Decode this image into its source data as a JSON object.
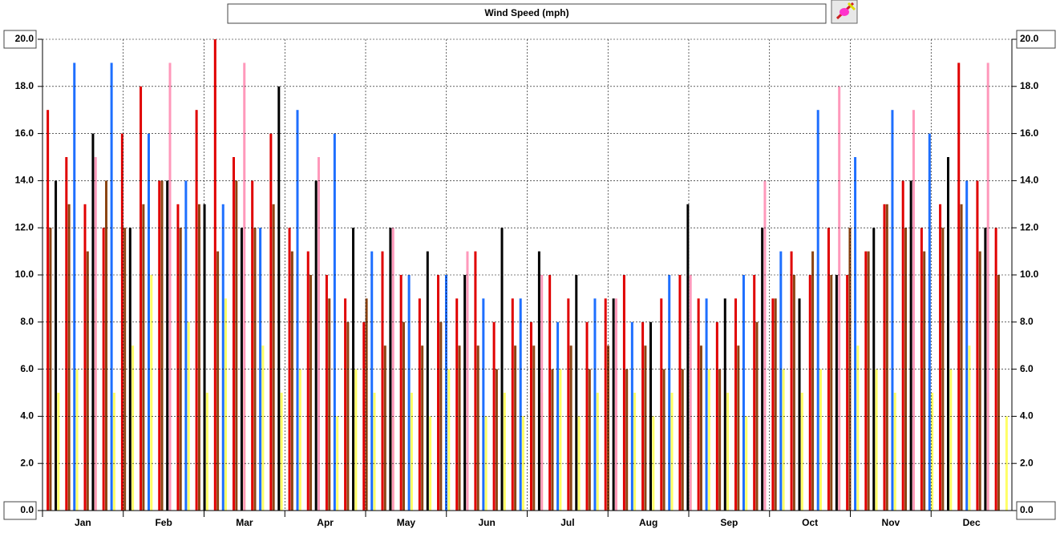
{
  "chart_data": {
    "type": "bar",
    "title": "Wind Speed (mph)",
    "categories": [
      "Jan",
      "Feb",
      "Mar",
      "Apr",
      "May",
      "Jun",
      "Jul",
      "Aug",
      "Sep",
      "Oct",
      "Nov",
      "Dec"
    ],
    "xlim": [
      0,
      365
    ],
    "ylim": [
      0,
      20
    ],
    "yticks": [
      {
        "value": 0,
        "label": "0.0"
      },
      {
        "value": 2,
        "label": "2.0"
      },
      {
        "value": 4,
        "label": "4.0"
      },
      {
        "value": 6,
        "label": "6.0"
      },
      {
        "value": 8,
        "label": "8.0"
      },
      {
        "value": 10,
        "label": "10.0"
      },
      {
        "value": 12,
        "label": "12.0"
      },
      {
        "value": 14,
        "label": "14.0"
      },
      {
        "value": 16,
        "label": "16.0"
      },
      {
        "value": 18,
        "label": "18.0"
      },
      {
        "value": 20,
        "label": "20.0"
      }
    ],
    "grid": true,
    "series": [
      {
        "color": "#8b4513",
        "x": [
          3,
          10,
          17,
          24,
          31,
          38,
          45,
          52,
          59,
          66,
          73,
          80,
          87,
          94,
          101,
          108,
          115,
          122,
          129,
          136,
          143,
          150,
          157,
          164,
          171,
          178,
          185,
          192,
          199,
          206,
          213,
          220,
          227,
          234,
          241,
          248,
          255,
          262,
          269,
          276,
          283,
          290,
          297,
          304,
          311,
          318,
          325,
          332,
          339,
          346,
          353,
          360
        ],
        "values": [
          12,
          13,
          11,
          14,
          12,
          13,
          14,
          12,
          13,
          11,
          14,
          12,
          13,
          11,
          10,
          9,
          8,
          9,
          7,
          8,
          7,
          8,
          7,
          7,
          6,
          7,
          7,
          6,
          7,
          6,
          7,
          6,
          7,
          6,
          6,
          7,
          6,
          7,
          8,
          9,
          10,
          11,
          10,
          12,
          11,
          13,
          12,
          11,
          12,
          13,
          11,
          10
        ]
      },
      {
        "color": "#ffff66",
        "x": [
          6,
          13,
          20,
          27,
          34,
          41,
          48,
          55,
          62,
          69,
          76,
          83,
          90,
          97,
          104,
          111,
          118,
          125,
          132,
          139,
          146,
          153,
          160,
          167,
          174,
          181,
          188,
          195,
          202,
          209,
          216,
          223,
          230,
          237,
          244,
          251,
          258,
          265,
          272,
          279,
          286,
          293,
          300,
          307,
          314,
          321,
          328,
          335,
          342,
          349,
          356,
          363
        ],
        "values": [
          5,
          6,
          9,
          5,
          7,
          10,
          6,
          8,
          5,
          9,
          6,
          7,
          5,
          6,
          5,
          4,
          6,
          5,
          4,
          5,
          4,
          6,
          5,
          4,
          5,
          4,
          5,
          6,
          4,
          5,
          4,
          5,
          4,
          5,
          4,
          6,
          5,
          4,
          5,
          6,
          5,
          6,
          5,
          7,
          6,
          5,
          6,
          5,
          6,
          7,
          5,
          4
        ]
      },
      {
        "color": "#e00000",
        "x": [
          2,
          9,
          16,
          23,
          30,
          37,
          44,
          51,
          58,
          65,
          72,
          79,
          86,
          93,
          100,
          107,
          114,
          121,
          128,
          135,
          142,
          149,
          156,
          163,
          170,
          177,
          184,
          191,
          198,
          205,
          212,
          219,
          226,
          233,
          240,
          247,
          254,
          261,
          268,
          275,
          282,
          289,
          296,
          303,
          310,
          317,
          324,
          331,
          338,
          345,
          352,
          359
        ],
        "values": [
          17,
          15,
          13,
          12,
          16,
          18,
          14,
          13,
          17,
          20,
          15,
          14,
          16,
          12,
          11,
          10,
          9,
          8,
          11,
          10,
          9,
          10,
          9,
          11,
          8,
          9,
          8,
          10,
          9,
          8,
          9,
          10,
          8,
          9,
          10,
          9,
          8,
          9,
          10,
          9,
          11,
          10,
          12,
          10,
          11,
          13,
          14,
          12,
          13,
          19,
          14,
          12
        ]
      },
      {
        "color": "#000000",
        "x": [
          5,
          19,
          33,
          47,
          61,
          75,
          89,
          103,
          117,
          131,
          145,
          159,
          173,
          187,
          201,
          215,
          229,
          243,
          257,
          271,
          285,
          299,
          313,
          327,
          341,
          355
        ],
        "values": [
          14,
          16,
          12,
          14,
          13,
          12,
          18,
          14,
          12,
          12,
          11,
          10,
          12,
          11,
          10,
          9,
          8,
          13,
          9,
          12,
          9,
          10,
          12,
          14,
          15,
          12
        ]
      },
      {
        "color": "#1e6fff",
        "x": [
          12,
          26,
          40,
          54,
          68,
          82,
          96,
          110,
          124,
          138,
          152,
          166,
          180,
          194,
          208,
          222,
          236,
          250,
          264,
          278,
          292,
          306,
          320,
          334,
          348
        ],
        "values": [
          19,
          19,
          16,
          14,
          13,
          12,
          17,
          16,
          11,
          10,
          10,
          9,
          9,
          8,
          9,
          8,
          10,
          9,
          10,
          11,
          17,
          15,
          17,
          16,
          14
        ]
      },
      {
        "color": "#ff99bb",
        "x": [
          20,
          48,
          76,
          104,
          132,
          160,
          188,
          216,
          244,
          272,
          300,
          328,
          356
        ],
        "values": [
          15,
          19,
          19,
          15,
          12,
          11,
          10,
          9,
          10,
          14,
          18,
          17,
          19
        ]
      }
    ]
  }
}
